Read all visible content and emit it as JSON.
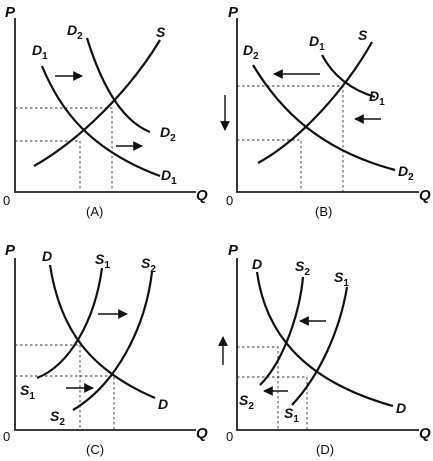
{
  "axis": {
    "price": "P",
    "quantity": "Q",
    "origin": "0"
  },
  "panels": [
    {
      "label": "(A)",
      "curves": [
        {
          "letter": "D",
          "sub": "1"
        },
        {
          "letter": "D",
          "sub": "2"
        },
        {
          "letter": "S",
          "sub": ""
        },
        {
          "letter": "D",
          "sub": "2"
        },
        {
          "letter": "D",
          "sub": "1"
        }
      ]
    },
    {
      "label": "(B)",
      "curves": [
        {
          "letter": "D",
          "sub": "2"
        },
        {
          "letter": "D",
          "sub": "1"
        },
        {
          "letter": "S",
          "sub": ""
        },
        {
          "letter": "D",
          "sub": "1"
        },
        {
          "letter": "D",
          "sub": "2"
        }
      ]
    },
    {
      "label": "(C)",
      "curves": [
        {
          "letter": "D",
          "sub": ""
        },
        {
          "letter": "S",
          "sub": "1"
        },
        {
          "letter": "S",
          "sub": "2"
        },
        {
          "letter": "S",
          "sub": "1"
        },
        {
          "letter": "S",
          "sub": "2"
        },
        {
          "letter": "D",
          "sub": ""
        }
      ]
    },
    {
      "label": "(D)",
      "curves": [
        {
          "letter": "D",
          "sub": ""
        },
        {
          "letter": "S",
          "sub": "2"
        },
        {
          "letter": "S",
          "sub": "1"
        },
        {
          "letter": "S",
          "sub": "2"
        },
        {
          "letter": "S",
          "sub": "1"
        },
        {
          "letter": "D",
          "sub": ""
        }
      ]
    }
  ]
}
